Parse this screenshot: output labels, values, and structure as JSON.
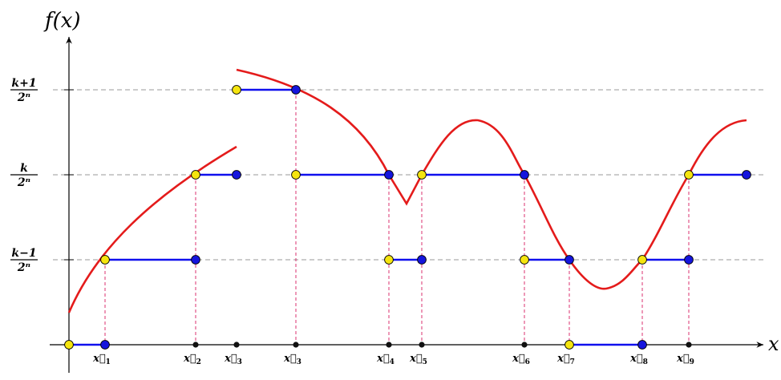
{
  "axes": {
    "y_label": "f(x)",
    "x_label": "x"
  },
  "levels": [
    {
      "key": "top",
      "numerator": "k+1",
      "denominator": "2ⁿ"
    },
    {
      "key": "mid",
      "numerator": "k",
      "denominator": "2ⁿ"
    },
    {
      "key": "low",
      "numerator": "k−1",
      "denominator": "2ⁿ"
    }
  ],
  "x_points": [
    {
      "base": "x⃗",
      "sub": "1"
    },
    {
      "base": "x⃗",
      "sub": "2"
    },
    {
      "base": "x⃗",
      "sub": "3"
    },
    {
      "base": "x⃗",
      "sub": "3"
    },
    {
      "base": "x⃗",
      "sub": "4"
    },
    {
      "base": "x⃗",
      "sub": "5"
    },
    {
      "base": "x⃗",
      "sub": "6"
    },
    {
      "base": "x⃗",
      "sub": "7"
    },
    {
      "base": "x⃗",
      "sub": "8"
    },
    {
      "base": "x⃗",
      "sub": "9"
    }
  ],
  "colors": {
    "curve": "#e41b1b",
    "step": "#1010ee",
    "open_marker": "#f5e50f",
    "closed_marker": "#1515dd",
    "dashed_level": "#999999",
    "dashed_drop": "#d81b60",
    "axis": "#000000"
  }
}
